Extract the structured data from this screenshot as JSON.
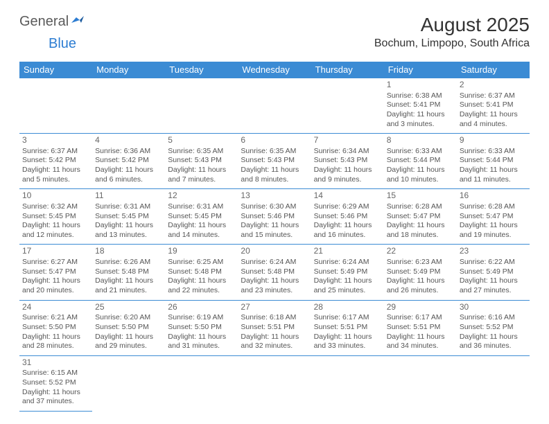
{
  "logo": {
    "general": "General",
    "blue": "Blue"
  },
  "title": "August 2025",
  "location": "Bochum, Limpopo, South Africa",
  "colors": {
    "header_bg": "#3b8bd4",
    "header_text": "#ffffff",
    "border": "#3b8bd4",
    "logo_gray": "#5a5a5a",
    "logo_blue": "#2d7dd2",
    "body_text": "#555"
  },
  "day_headers": [
    "Sunday",
    "Monday",
    "Tuesday",
    "Wednesday",
    "Thursday",
    "Friday",
    "Saturday"
  ],
  "weeks": [
    [
      null,
      null,
      null,
      null,
      null,
      {
        "n": "1",
        "sr": "Sunrise: 6:38 AM",
        "ss": "Sunset: 5:41 PM",
        "d1": "Daylight: 11 hours",
        "d2": "and 3 minutes."
      },
      {
        "n": "2",
        "sr": "Sunrise: 6:37 AM",
        "ss": "Sunset: 5:41 PM",
        "d1": "Daylight: 11 hours",
        "d2": "and 4 minutes."
      }
    ],
    [
      {
        "n": "3",
        "sr": "Sunrise: 6:37 AM",
        "ss": "Sunset: 5:42 PM",
        "d1": "Daylight: 11 hours",
        "d2": "and 5 minutes."
      },
      {
        "n": "4",
        "sr": "Sunrise: 6:36 AM",
        "ss": "Sunset: 5:42 PM",
        "d1": "Daylight: 11 hours",
        "d2": "and 6 minutes."
      },
      {
        "n": "5",
        "sr": "Sunrise: 6:35 AM",
        "ss": "Sunset: 5:43 PM",
        "d1": "Daylight: 11 hours",
        "d2": "and 7 minutes."
      },
      {
        "n": "6",
        "sr": "Sunrise: 6:35 AM",
        "ss": "Sunset: 5:43 PM",
        "d1": "Daylight: 11 hours",
        "d2": "and 8 minutes."
      },
      {
        "n": "7",
        "sr": "Sunrise: 6:34 AM",
        "ss": "Sunset: 5:43 PM",
        "d1": "Daylight: 11 hours",
        "d2": "and 9 minutes."
      },
      {
        "n": "8",
        "sr": "Sunrise: 6:33 AM",
        "ss": "Sunset: 5:44 PM",
        "d1": "Daylight: 11 hours",
        "d2": "and 10 minutes."
      },
      {
        "n": "9",
        "sr": "Sunrise: 6:33 AM",
        "ss": "Sunset: 5:44 PM",
        "d1": "Daylight: 11 hours",
        "d2": "and 11 minutes."
      }
    ],
    [
      {
        "n": "10",
        "sr": "Sunrise: 6:32 AM",
        "ss": "Sunset: 5:45 PM",
        "d1": "Daylight: 11 hours",
        "d2": "and 12 minutes."
      },
      {
        "n": "11",
        "sr": "Sunrise: 6:31 AM",
        "ss": "Sunset: 5:45 PM",
        "d1": "Daylight: 11 hours",
        "d2": "and 13 minutes."
      },
      {
        "n": "12",
        "sr": "Sunrise: 6:31 AM",
        "ss": "Sunset: 5:45 PM",
        "d1": "Daylight: 11 hours",
        "d2": "and 14 minutes."
      },
      {
        "n": "13",
        "sr": "Sunrise: 6:30 AM",
        "ss": "Sunset: 5:46 PM",
        "d1": "Daylight: 11 hours",
        "d2": "and 15 minutes."
      },
      {
        "n": "14",
        "sr": "Sunrise: 6:29 AM",
        "ss": "Sunset: 5:46 PM",
        "d1": "Daylight: 11 hours",
        "d2": "and 16 minutes."
      },
      {
        "n": "15",
        "sr": "Sunrise: 6:28 AM",
        "ss": "Sunset: 5:47 PM",
        "d1": "Daylight: 11 hours",
        "d2": "and 18 minutes."
      },
      {
        "n": "16",
        "sr": "Sunrise: 6:28 AM",
        "ss": "Sunset: 5:47 PM",
        "d1": "Daylight: 11 hours",
        "d2": "and 19 minutes."
      }
    ],
    [
      {
        "n": "17",
        "sr": "Sunrise: 6:27 AM",
        "ss": "Sunset: 5:47 PM",
        "d1": "Daylight: 11 hours",
        "d2": "and 20 minutes."
      },
      {
        "n": "18",
        "sr": "Sunrise: 6:26 AM",
        "ss": "Sunset: 5:48 PM",
        "d1": "Daylight: 11 hours",
        "d2": "and 21 minutes."
      },
      {
        "n": "19",
        "sr": "Sunrise: 6:25 AM",
        "ss": "Sunset: 5:48 PM",
        "d1": "Daylight: 11 hours",
        "d2": "and 22 minutes."
      },
      {
        "n": "20",
        "sr": "Sunrise: 6:24 AM",
        "ss": "Sunset: 5:48 PM",
        "d1": "Daylight: 11 hours",
        "d2": "and 23 minutes."
      },
      {
        "n": "21",
        "sr": "Sunrise: 6:24 AM",
        "ss": "Sunset: 5:49 PM",
        "d1": "Daylight: 11 hours",
        "d2": "and 25 minutes."
      },
      {
        "n": "22",
        "sr": "Sunrise: 6:23 AM",
        "ss": "Sunset: 5:49 PM",
        "d1": "Daylight: 11 hours",
        "d2": "and 26 minutes."
      },
      {
        "n": "23",
        "sr": "Sunrise: 6:22 AM",
        "ss": "Sunset: 5:49 PM",
        "d1": "Daylight: 11 hours",
        "d2": "and 27 minutes."
      }
    ],
    [
      {
        "n": "24",
        "sr": "Sunrise: 6:21 AM",
        "ss": "Sunset: 5:50 PM",
        "d1": "Daylight: 11 hours",
        "d2": "and 28 minutes."
      },
      {
        "n": "25",
        "sr": "Sunrise: 6:20 AM",
        "ss": "Sunset: 5:50 PM",
        "d1": "Daylight: 11 hours",
        "d2": "and 29 minutes."
      },
      {
        "n": "26",
        "sr": "Sunrise: 6:19 AM",
        "ss": "Sunset: 5:50 PM",
        "d1": "Daylight: 11 hours",
        "d2": "and 31 minutes."
      },
      {
        "n": "27",
        "sr": "Sunrise: 6:18 AM",
        "ss": "Sunset: 5:51 PM",
        "d1": "Daylight: 11 hours",
        "d2": "and 32 minutes."
      },
      {
        "n": "28",
        "sr": "Sunrise: 6:17 AM",
        "ss": "Sunset: 5:51 PM",
        "d1": "Daylight: 11 hours",
        "d2": "and 33 minutes."
      },
      {
        "n": "29",
        "sr": "Sunrise: 6:17 AM",
        "ss": "Sunset: 5:51 PM",
        "d1": "Daylight: 11 hours",
        "d2": "and 34 minutes."
      },
      {
        "n": "30",
        "sr": "Sunrise: 6:16 AM",
        "ss": "Sunset: 5:52 PM",
        "d1": "Daylight: 11 hours",
        "d2": "and 36 minutes."
      }
    ],
    [
      {
        "n": "31",
        "sr": "Sunrise: 6:15 AM",
        "ss": "Sunset: 5:52 PM",
        "d1": "Daylight: 11 hours",
        "d2": "and 37 minutes."
      },
      null,
      null,
      null,
      null,
      null,
      null
    ]
  ]
}
